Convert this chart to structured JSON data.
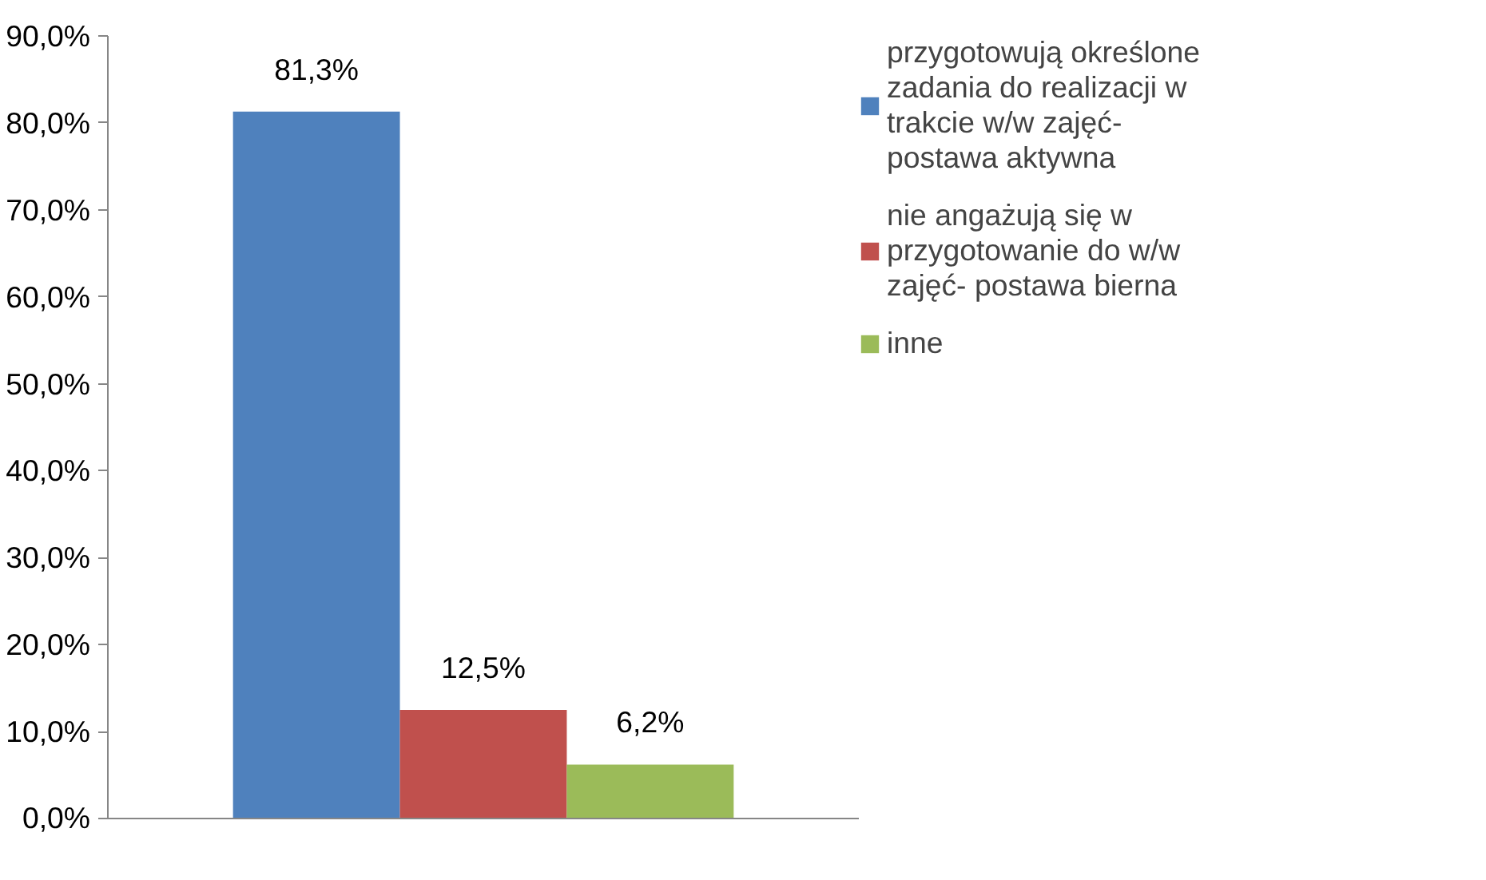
{
  "chart_data": {
    "type": "bar",
    "categories": [
      null
    ],
    "series": [
      {
        "name": "przygotowują określone zadania do realizacji w trakcie w/w zajęć- postawa aktywna",
        "color": "#4f81bd",
        "values": [
          81.3
        ],
        "value_labels": [
          "81,3%"
        ]
      },
      {
        "name": "nie angażują się w przygotowanie do w/w zajęć- postawa bierna",
        "color": "#c0504d",
        "values": [
          12.5
        ],
        "value_labels": [
          "12,5%"
        ]
      },
      {
        "name": "inne",
        "color": "#9bbb59",
        "values": [
          6.2
        ],
        "value_labels": [
          "6,2%"
        ]
      }
    ],
    "ylim": [
      0,
      90
    ],
    "yticks": [
      {
        "value": 0,
        "label": "0,0%"
      },
      {
        "value": 10,
        "label": "10,0%"
      },
      {
        "value": 20,
        "label": "20,0%"
      },
      {
        "value": 30,
        "label": "30,0%"
      },
      {
        "value": 40,
        "label": "40,0%"
      },
      {
        "value": 50,
        "label": "50,0%"
      },
      {
        "value": 60,
        "label": "60,0%"
      },
      {
        "value": 70,
        "label": "70,0%"
      },
      {
        "value": 80,
        "label": "80,0%"
      },
      {
        "value": 90,
        "label": "90,0%"
      }
    ],
    "grid": false,
    "legend": "right"
  }
}
